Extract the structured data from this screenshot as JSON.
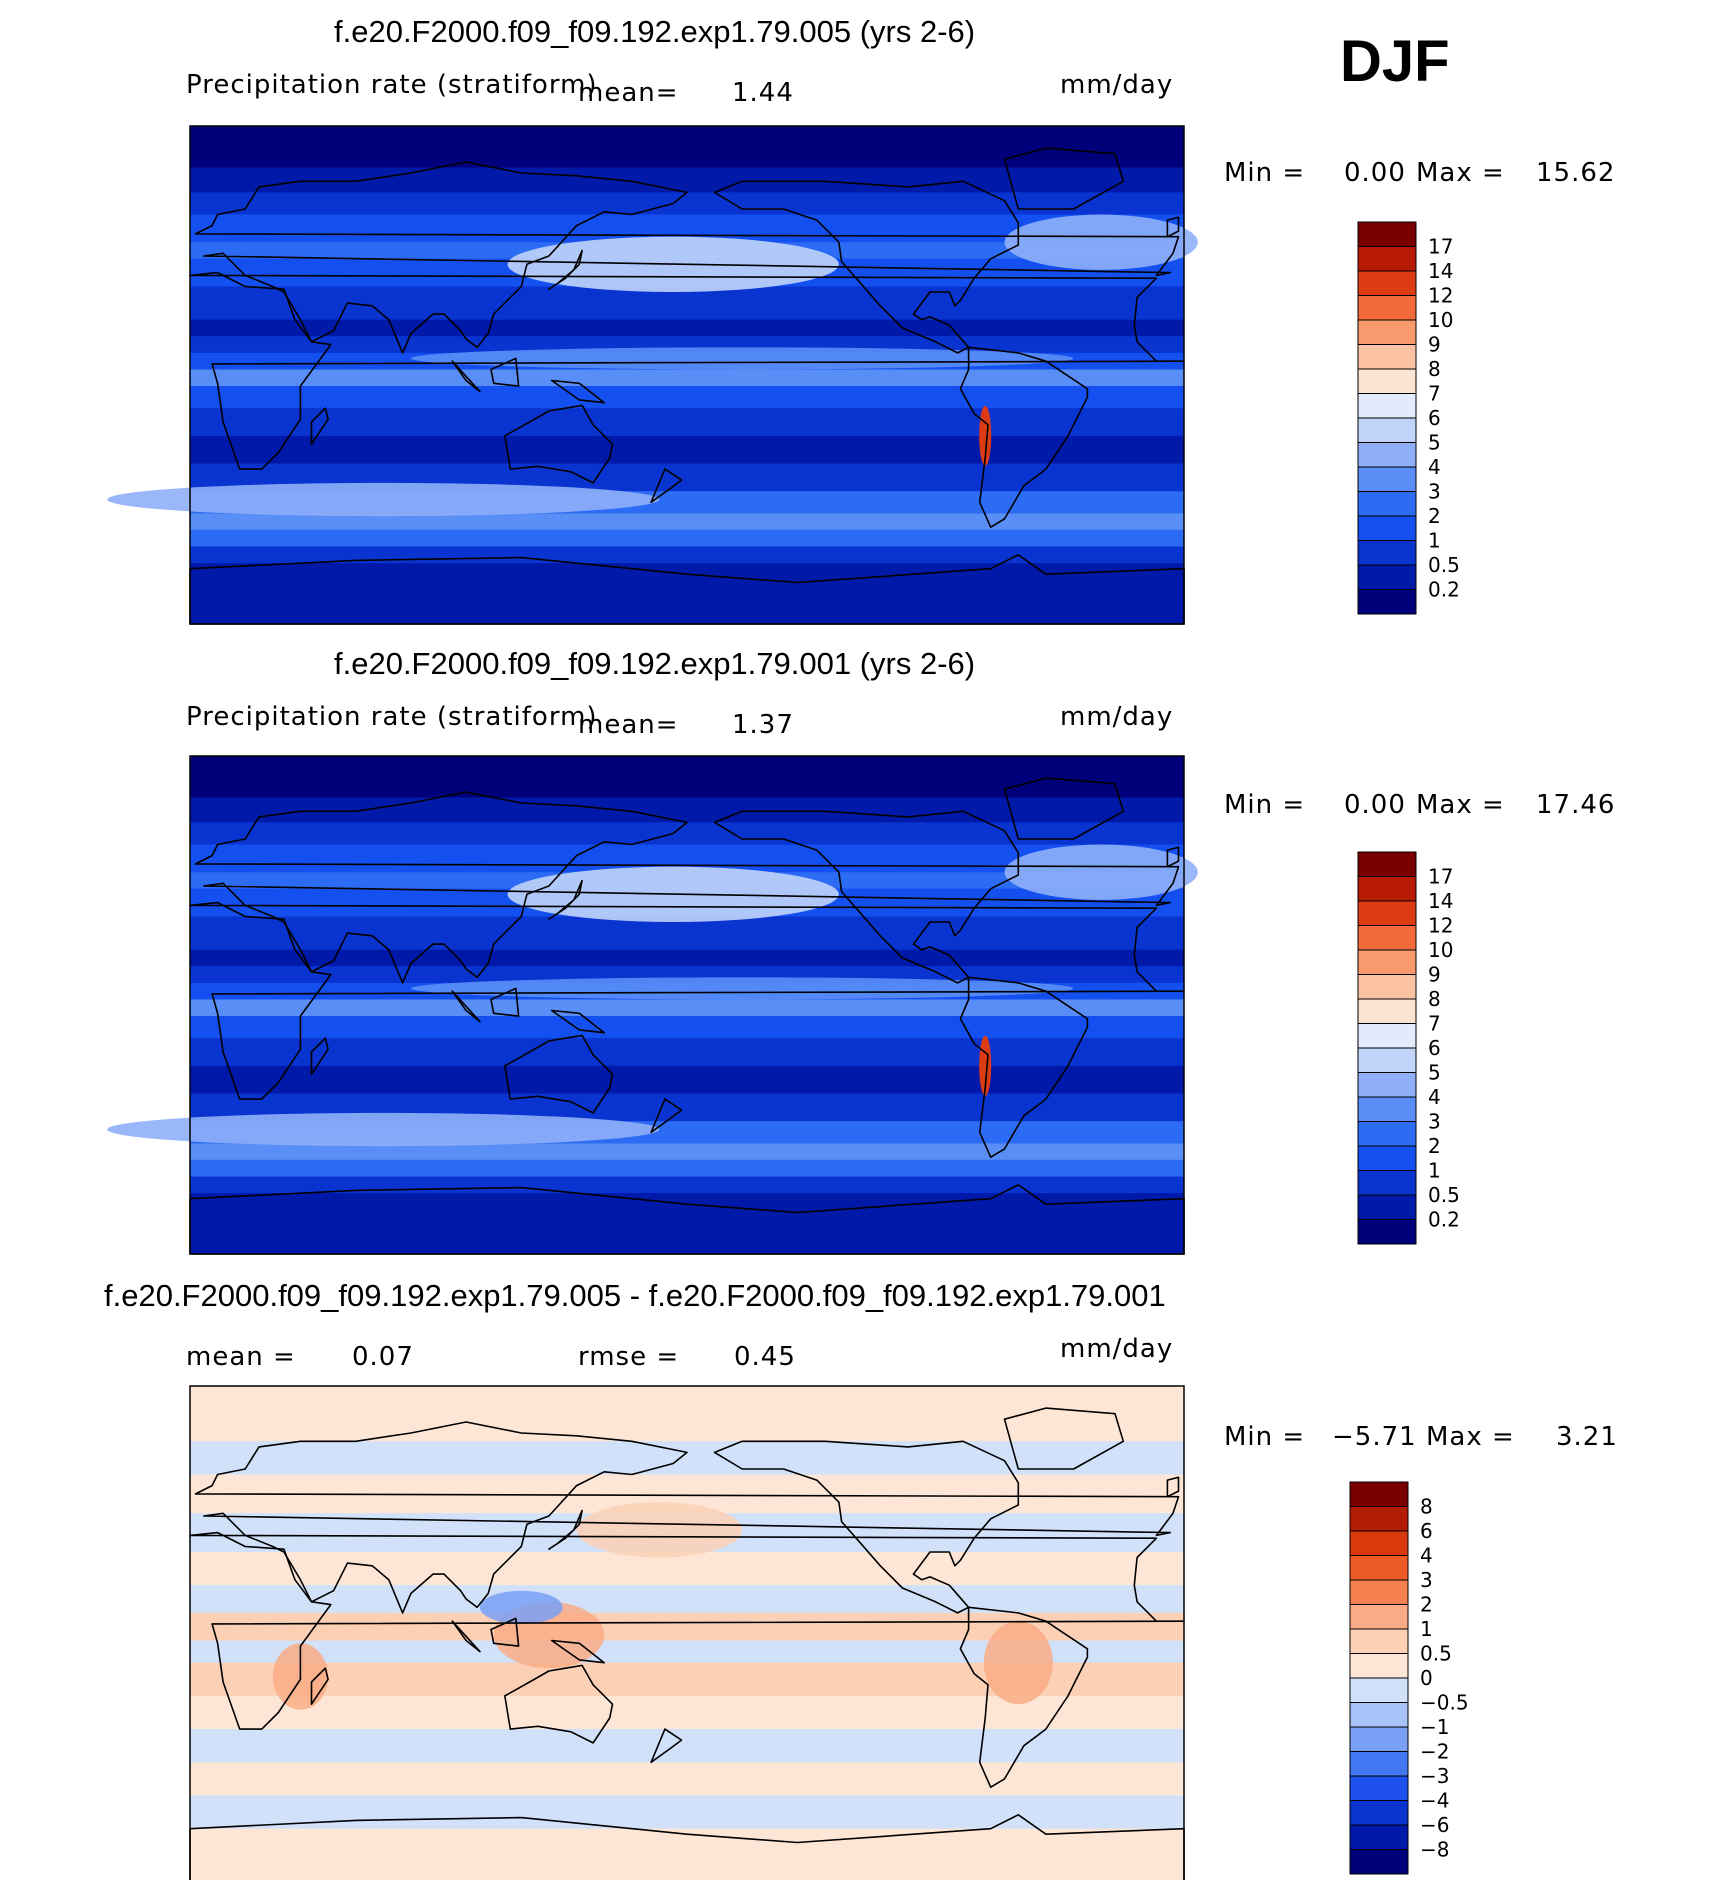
{
  "season": "DJF",
  "panels": [
    {
      "title": "f.e20.F2000.f09_f09.192.exp1.79.005 (yrs 2-6)",
      "variable": "Precipitation rate (stratiform)",
      "mean_label": "mean=",
      "mean_value": "1.44",
      "units": "mm/day",
      "min_label": "Min =",
      "min_value": "0.00",
      "max_label": "Max =",
      "max_value": "15.62"
    },
    {
      "title": "f.e20.F2000.f09_f09.192.exp1.79.001 (yrs 2-6)",
      "variable": "Precipitation rate (stratiform)",
      "mean_label": "mean=",
      "mean_value": "1.37",
      "units": "mm/day",
      "min_label": "Min =",
      "min_value": "0.00",
      "max_label": "Max =",
      "max_value": "17.46"
    },
    {
      "title": "f.e20.F2000.f09_f09.192.exp1.79.005 - f.e20.F2000.f09_f09.192.exp1.79.001",
      "mean_label": "mean =",
      "mean_value": "0.07",
      "rmse_label": "rmse =",
      "rmse_value": "0.45",
      "units": "mm/day",
      "min_label": "Min =",
      "min_value": "−5.71",
      "max_label": "Max =",
      "max_value": "3.21"
    }
  ],
  "chart_data": [
    {
      "type": "heatmap",
      "title": "f.e20.F2000.f09_f09.192.exp1.79.005 (yrs 2-6)",
      "subtitle": "Precipitation rate (stratiform)",
      "units": "mm/day",
      "stats": {
        "mean": 1.44,
        "min": 0.0,
        "max": 15.62
      },
      "colorbar_levels": [
        "0.2",
        "0.5",
        "1",
        "2",
        "3",
        "4",
        "5",
        "6",
        "7",
        "8",
        "9",
        "10",
        "12",
        "14",
        "17"
      ],
      "colorbar_colors": [
        "#00007a",
        "#0019a8",
        "#0a34d0",
        "#1450f0",
        "#2c6cf5",
        "#5a8ef7",
        "#8fb0f8",
        "#c0d4fa",
        "#e2ebfb",
        "#fbe4d2",
        "#fbc3a3",
        "#f89a6e",
        "#f26a3a",
        "#dd3b13",
        "#b81a05",
        "#7a0000"
      ],
      "colorbar_position": "right"
    },
    {
      "type": "heatmap",
      "title": "f.e20.F2000.f09_f09.192.exp1.79.001 (yrs 2-6)",
      "subtitle": "Precipitation rate (stratiform)",
      "units": "mm/day",
      "stats": {
        "mean": 1.37,
        "min": 0.0,
        "max": 17.46
      },
      "colorbar_levels": [
        "0.2",
        "0.5",
        "1",
        "2",
        "3",
        "4",
        "5",
        "6",
        "7",
        "8",
        "9",
        "10",
        "12",
        "14",
        "17"
      ],
      "colorbar_colors": [
        "#00007a",
        "#0019a8",
        "#0a34d0",
        "#1450f0",
        "#2c6cf5",
        "#5a8ef7",
        "#8fb0f8",
        "#c0d4fa",
        "#e2ebfb",
        "#fbe4d2",
        "#fbc3a3",
        "#f89a6e",
        "#f26a3a",
        "#dd3b13",
        "#b81a05",
        "#7a0000"
      ],
      "colorbar_position": "right"
    },
    {
      "type": "heatmap",
      "title": "f.e20.F2000.f09_f09.192.exp1.79.005 - f.e20.F2000.f09_f09.192.exp1.79.001",
      "units": "mm/day",
      "stats": {
        "mean": 0.07,
        "rmse": 0.45,
        "min": -5.71,
        "max": 3.21
      },
      "colorbar_levels": [
        "−8",
        "−6",
        "−4",
        "−3",
        "−2",
        "−1",
        "−0.5",
        "0",
        "0.5",
        "1",
        "2",
        "3",
        "4",
        "6",
        "8"
      ],
      "colorbar_colors": [
        "#00007a",
        "#0019a8",
        "#0a34d0",
        "#1e50ee",
        "#4478f2",
        "#7aa0f5",
        "#a8c3f8",
        "#d2e1fa",
        "#fde6d6",
        "#fcd0b5",
        "#f9ab85",
        "#f4804f",
        "#ec5a26",
        "#d83a0e",
        "#b31c04",
        "#7a0000"
      ],
      "colorbar_position": "right"
    }
  ]
}
